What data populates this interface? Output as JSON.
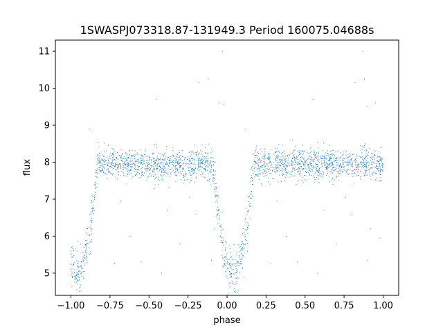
{
  "chart_data": {
    "type": "scatter",
    "title": "1SWASPJ073318.87-131949.3 Period 160075.04688s",
    "xlabel": "phase",
    "ylabel": "flux",
    "xlim": [
      -1.1,
      1.1
    ],
    "ylim": [
      4.4,
      11.3
    ],
    "xticks": [
      -1.0,
      -0.75,
      -0.5,
      -0.25,
      0.0,
      0.25,
      0.5,
      0.75,
      1.0
    ],
    "xtick_labels": [
      "−1.00",
      "−0.75",
      "−0.50",
      "−0.25",
      "0.00",
      "0.25",
      "0.50",
      "0.75",
      "1.00"
    ],
    "yticks": [
      5,
      6,
      7,
      8,
      9,
      10,
      11
    ],
    "ytick_labels": [
      "5",
      "6",
      "7",
      "8",
      "9",
      "10",
      "11"
    ],
    "grid": false,
    "marker_color": "#1f77b4",
    "light_curve": {
      "phase_range": [
        -1.0,
        1.0
      ],
      "baseline_flux": 7.95,
      "eclipse_center_phase": [
        -0.96,
        0.04
      ],
      "eclipse_min_flux": 5.0,
      "eclipse_half_width": 0.13,
      "scatter_sigma": 0.2,
      "n_points": 2600
    },
    "outliers": [
      {
        "x": -0.03,
        "y": 11.0
      },
      {
        "x": 0.87,
        "y": 11.0
      },
      {
        "x": 0.88,
        "y": 10.25
      },
      {
        "x": -0.12,
        "y": 10.25
      },
      {
        "x": 0.82,
        "y": 10.15
      },
      {
        "x": -0.18,
        "y": 10.15
      },
      {
        "x": -0.05,
        "y": 9.6
      },
      {
        "x": 0.95,
        "y": 9.6
      },
      {
        "x": -0.02,
        "y": 9.55
      },
      {
        "x": 0.9,
        "y": 9.5
      },
      {
        "x": -0.45,
        "y": 9.7
      },
      {
        "x": 0.55,
        "y": 9.7
      },
      {
        "x": -0.88,
        "y": 8.9
      },
      {
        "x": 0.12,
        "y": 8.9
      },
      {
        "x": -0.35,
        "y": 8.4
      },
      {
        "x": 0.42,
        "y": 8.6
      },
      {
        "x": -0.62,
        "y": 6.0
      },
      {
        "x": 0.38,
        "y": 6.0
      },
      {
        "x": -0.55,
        "y": 5.3
      },
      {
        "x": 0.45,
        "y": 5.3
      },
      {
        "x": -0.72,
        "y": 5.25
      },
      {
        "x": 0.28,
        "y": 5.25
      },
      {
        "x": -0.42,
        "y": 5.0
      },
      {
        "x": 0.58,
        "y": 5.0
      },
      {
        "x": -0.3,
        "y": 5.8
      },
      {
        "x": 0.7,
        "y": 5.8
      },
      {
        "x": -0.2,
        "y": 6.6
      },
      {
        "x": 0.8,
        "y": 6.6
      },
      {
        "x": -0.08,
        "y": 6.2
      },
      {
        "x": 0.92,
        "y": 6.2
      },
      {
        "x": -0.68,
        "y": 6.95
      },
      {
        "x": 0.32,
        "y": 6.95
      },
      {
        "x": -0.1,
        "y": 5.35
      },
      {
        "x": 0.9,
        "y": 5.35
      },
      {
        "x": -0.38,
        "y": 6.7
      },
      {
        "x": 0.62,
        "y": 6.7
      },
      {
        "x": -0.02,
        "y": 5.95
      },
      {
        "x": 0.98,
        "y": 5.95
      },
      {
        "x": -0.24,
        "y": 7.05
      },
      {
        "x": 0.76,
        "y": 7.05
      }
    ]
  }
}
